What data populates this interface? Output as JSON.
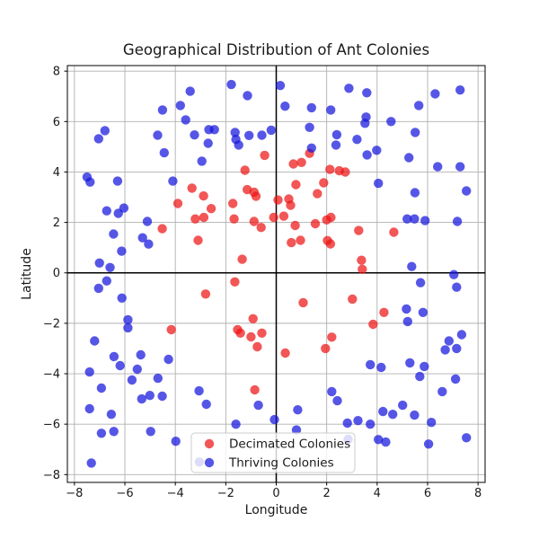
{
  "chart_data": {
    "type": "scatter",
    "title": "Geographical Distribution of Ant Colonies",
    "xlabel": "Longitude",
    "ylabel": "Latitude",
    "xlim": [
      -8.28,
      8.28
    ],
    "ylim": [
      -8.31,
      8.22
    ],
    "xticks": [
      -8,
      -6,
      -4,
      -2,
      0,
      2,
      4,
      6,
      8
    ],
    "yticks": [
      -8,
      -6,
      -4,
      -2,
      0,
      2,
      4,
      6,
      8
    ],
    "grid": true,
    "grid_color": "#b0b0b0",
    "zero_lines": true,
    "zero_line_color": "#000000",
    "marker_radius": 5.2,
    "marker_opacity": 0.72,
    "legend_location": "lower center",
    "series": [
      {
        "name": "Decimated Colonies",
        "color": "#ed1515",
        "points": [
          [
            -3.34,
            3.36
          ],
          [
            -2.88,
            3.05
          ],
          [
            -3.9,
            2.75
          ],
          [
            -4.52,
            1.75
          ],
          [
            -3.21,
            2.14
          ],
          [
            -2.87,
            2.2
          ],
          [
            -2.58,
            2.55
          ],
          [
            -1.72,
            2.75
          ],
          [
            -3.1,
            1.29
          ],
          [
            -4.16,
            -2.25
          ],
          [
            -1.67,
            2.14
          ],
          [
            -0.88,
            2.04
          ],
          [
            -0.6,
            1.8
          ],
          [
            -0.1,
            2.2
          ],
          [
            0.3,
            2.25
          ],
          [
            0.07,
            2.89
          ],
          [
            0.5,
            2.93
          ],
          [
            0.57,
            2.68
          ],
          [
            0.75,
            1.88
          ],
          [
            1.55,
            1.95
          ],
          [
            2.0,
            2.1
          ],
          [
            2.17,
            2.2
          ],
          [
            0.6,
            1.2
          ],
          [
            0.96,
            1.29
          ],
          [
            2.03,
            1.28
          ],
          [
            2.15,
            1.15
          ],
          [
            -1.35,
            0.54
          ],
          [
            -1.64,
            -0.36
          ],
          [
            -2.8,
            -0.84
          ],
          [
            1.07,
            -1.18
          ],
          [
            -0.92,
            -1.82
          ],
          [
            -1.53,
            -2.25
          ],
          [
            -1.42,
            -2.39
          ],
          [
            -1.0,
            -2.54
          ],
          [
            -0.57,
            -2.39
          ],
          [
            -0.75,
            -2.93
          ],
          [
            0.36,
            -3.18
          ],
          [
            2.2,
            -2.55
          ],
          [
            1.95,
            -3.0
          ],
          [
            -0.85,
            -4.64
          ],
          [
            -0.46,
            4.66
          ],
          [
            -1.24,
            4.07
          ],
          [
            0.68,
            4.32
          ],
          [
            1.0,
            4.38
          ],
          [
            1.32,
            4.74
          ],
          [
            0.78,
            3.5
          ],
          [
            1.63,
            3.14
          ],
          [
            1.88,
            3.57
          ],
          [
            2.13,
            4.1
          ],
          [
            2.5,
            4.05
          ],
          [
            2.74,
            4.0
          ],
          [
            -1.15,
            3.3
          ],
          [
            -0.88,
            3.2
          ],
          [
            -0.8,
            3.04
          ],
          [
            3.27,
            1.68
          ],
          [
            4.66,
            1.61
          ],
          [
            3.38,
            0.5
          ],
          [
            3.41,
            0.14
          ],
          [
            3.02,
            -1.04
          ],
          [
            4.27,
            -1.57
          ],
          [
            3.84,
            -2.04
          ]
        ]
      },
      {
        "name": "Thriving Colonies",
        "color": "#1515dd",
        "points": [
          [
            -3.41,
            7.2
          ],
          [
            -4.51,
            6.46
          ],
          [
            -3.8,
            6.64
          ],
          [
            -3.59,
            6.07
          ],
          [
            -3.24,
            5.47
          ],
          [
            -4.7,
            5.46
          ],
          [
            -4.44,
            4.76
          ],
          [
            -7.04,
            5.32
          ],
          [
            -6.79,
            5.64
          ],
          [
            -7.5,
            3.8
          ],
          [
            -7.38,
            3.6
          ],
          [
            -6.29,
            3.64
          ],
          [
            -4.1,
            3.64
          ],
          [
            -2.95,
            4.43
          ],
          [
            -2.7,
            5.14
          ],
          [
            -1.78,
            7.47
          ],
          [
            -1.14,
            7.03
          ],
          [
            0.16,
            7.43
          ],
          [
            0.35,
            6.61
          ],
          [
            1.4,
            6.55
          ],
          [
            2.16,
            6.46
          ],
          [
            -2.67,
            5.68
          ],
          [
            -2.45,
            5.68
          ],
          [
            -1.63,
            5.57
          ],
          [
            -1.6,
            5.29
          ],
          [
            -1.49,
            5.07
          ],
          [
            -1.08,
            5.45
          ],
          [
            -0.57,
            5.46
          ],
          [
            -0.2,
            5.66
          ],
          [
            1.32,
            5.77
          ],
          [
            2.4,
            5.48
          ],
          [
            2.37,
            5.07
          ],
          [
            1.4,
            4.95
          ],
          [
            2.88,
            7.32
          ],
          [
            3.59,
            7.14
          ],
          [
            6.3,
            7.1
          ],
          [
            7.29,
            7.25
          ],
          [
            5.65,
            6.64
          ],
          [
            3.56,
            6.18
          ],
          [
            3.52,
            5.93
          ],
          [
            4.55,
            6.0
          ],
          [
            5.51,
            5.57
          ],
          [
            3.2,
            5.29
          ],
          [
            3.6,
            4.68
          ],
          [
            3.98,
            4.86
          ],
          [
            5.26,
            4.57
          ],
          [
            6.4,
            4.21
          ],
          [
            7.29,
            4.21
          ],
          [
            4.05,
            3.55
          ],
          [
            5.5,
            3.18
          ],
          [
            7.54,
            3.25
          ],
          [
            -6.72,
            2.46
          ],
          [
            -6.26,
            2.36
          ],
          [
            -6.04,
            2.57
          ],
          [
            -5.11,
            2.04
          ],
          [
            -6.45,
            1.54
          ],
          [
            -5.3,
            1.39
          ],
          [
            -5.06,
            1.14
          ],
          [
            -6.13,
            0.86
          ],
          [
            -7.01,
            0.39
          ],
          [
            -6.59,
            0.21
          ],
          [
            -6.72,
            -0.32
          ],
          [
            -7.04,
            -0.61
          ],
          [
            -6.12,
            -1.0
          ],
          [
            -5.88,
            -1.86
          ],
          [
            -5.88,
            -2.18
          ],
          [
            -7.2,
            -2.7
          ],
          [
            5.19,
            2.14
          ],
          [
            5.48,
            2.14
          ],
          [
            5.9,
            2.07
          ],
          [
            7.18,
            2.04
          ],
          [
            5.37,
            0.25
          ],
          [
            7.04,
            -0.07
          ],
          [
            5.72,
            -0.39
          ],
          [
            7.15,
            -0.57
          ],
          [
            5.16,
            -1.43
          ],
          [
            5.82,
            -1.57
          ],
          [
            5.21,
            -1.93
          ],
          [
            -6.43,
            -3.32
          ],
          [
            -6.19,
            -3.68
          ],
          [
            -7.4,
            -3.93
          ],
          [
            -5.37,
            -3.25
          ],
          [
            -4.27,
            -3.43
          ],
          [
            -5.51,
            -3.82
          ],
          [
            -5.72,
            -4.25
          ],
          [
            -4.69,
            -4.18
          ],
          [
            -6.93,
            -4.57
          ],
          [
            -5.33,
            -5.0
          ],
          [
            -5.01,
            -4.86
          ],
          [
            -4.52,
            -4.89
          ],
          [
            -7.4,
            -5.39
          ],
          [
            -6.54,
            -5.61
          ],
          [
            -3.06,
            -4.68
          ],
          [
            -2.77,
            -5.21
          ],
          [
            -6.93,
            -6.36
          ],
          [
            -6.44,
            -6.29
          ],
          [
            -4.98,
            -6.29
          ],
          [
            -3.98,
            -6.68
          ],
          [
            -7.33,
            -7.54
          ],
          [
            -0.71,
            -5.25
          ],
          [
            -0.07,
            -5.82
          ],
          [
            0.85,
            -5.43
          ],
          [
            -1.6,
            -6.0
          ],
          [
            0.8,
            -6.23
          ],
          [
            2.2,
            -4.71
          ],
          [
            2.42,
            -5.07
          ],
          [
            -3.05,
            -7.5
          ],
          [
            2.82,
            -5.96
          ],
          [
            3.24,
            -5.86
          ],
          [
            3.73,
            -6.0
          ],
          [
            3.73,
            -3.64
          ],
          [
            4.16,
            -3.75
          ],
          [
            5.3,
            -3.57
          ],
          [
            5.87,
            -3.71
          ],
          [
            5.69,
            -4.11
          ],
          [
            7.11,
            -4.21
          ],
          [
            6.58,
            -4.71
          ],
          [
            5.01,
            -5.25
          ],
          [
            4.23,
            -5.5
          ],
          [
            4.62,
            -5.61
          ],
          [
            5.48,
            -5.64
          ],
          [
            6.15,
            -5.93
          ],
          [
            4.05,
            -6.61
          ],
          [
            4.34,
            -6.71
          ],
          [
            6.04,
            -6.79
          ],
          [
            7.54,
            -6.54
          ],
          [
            2.85,
            -6.6
          ],
          [
            6.85,
            -2.7
          ],
          [
            7.35,
            -2.45
          ],
          [
            6.7,
            -3.05
          ],
          [
            7.15,
            -3.0
          ]
        ]
      }
    ]
  },
  "legend": {
    "items": [
      {
        "label": "Decimated Colonies"
      },
      {
        "label": "Thriving Colonies"
      }
    ]
  }
}
